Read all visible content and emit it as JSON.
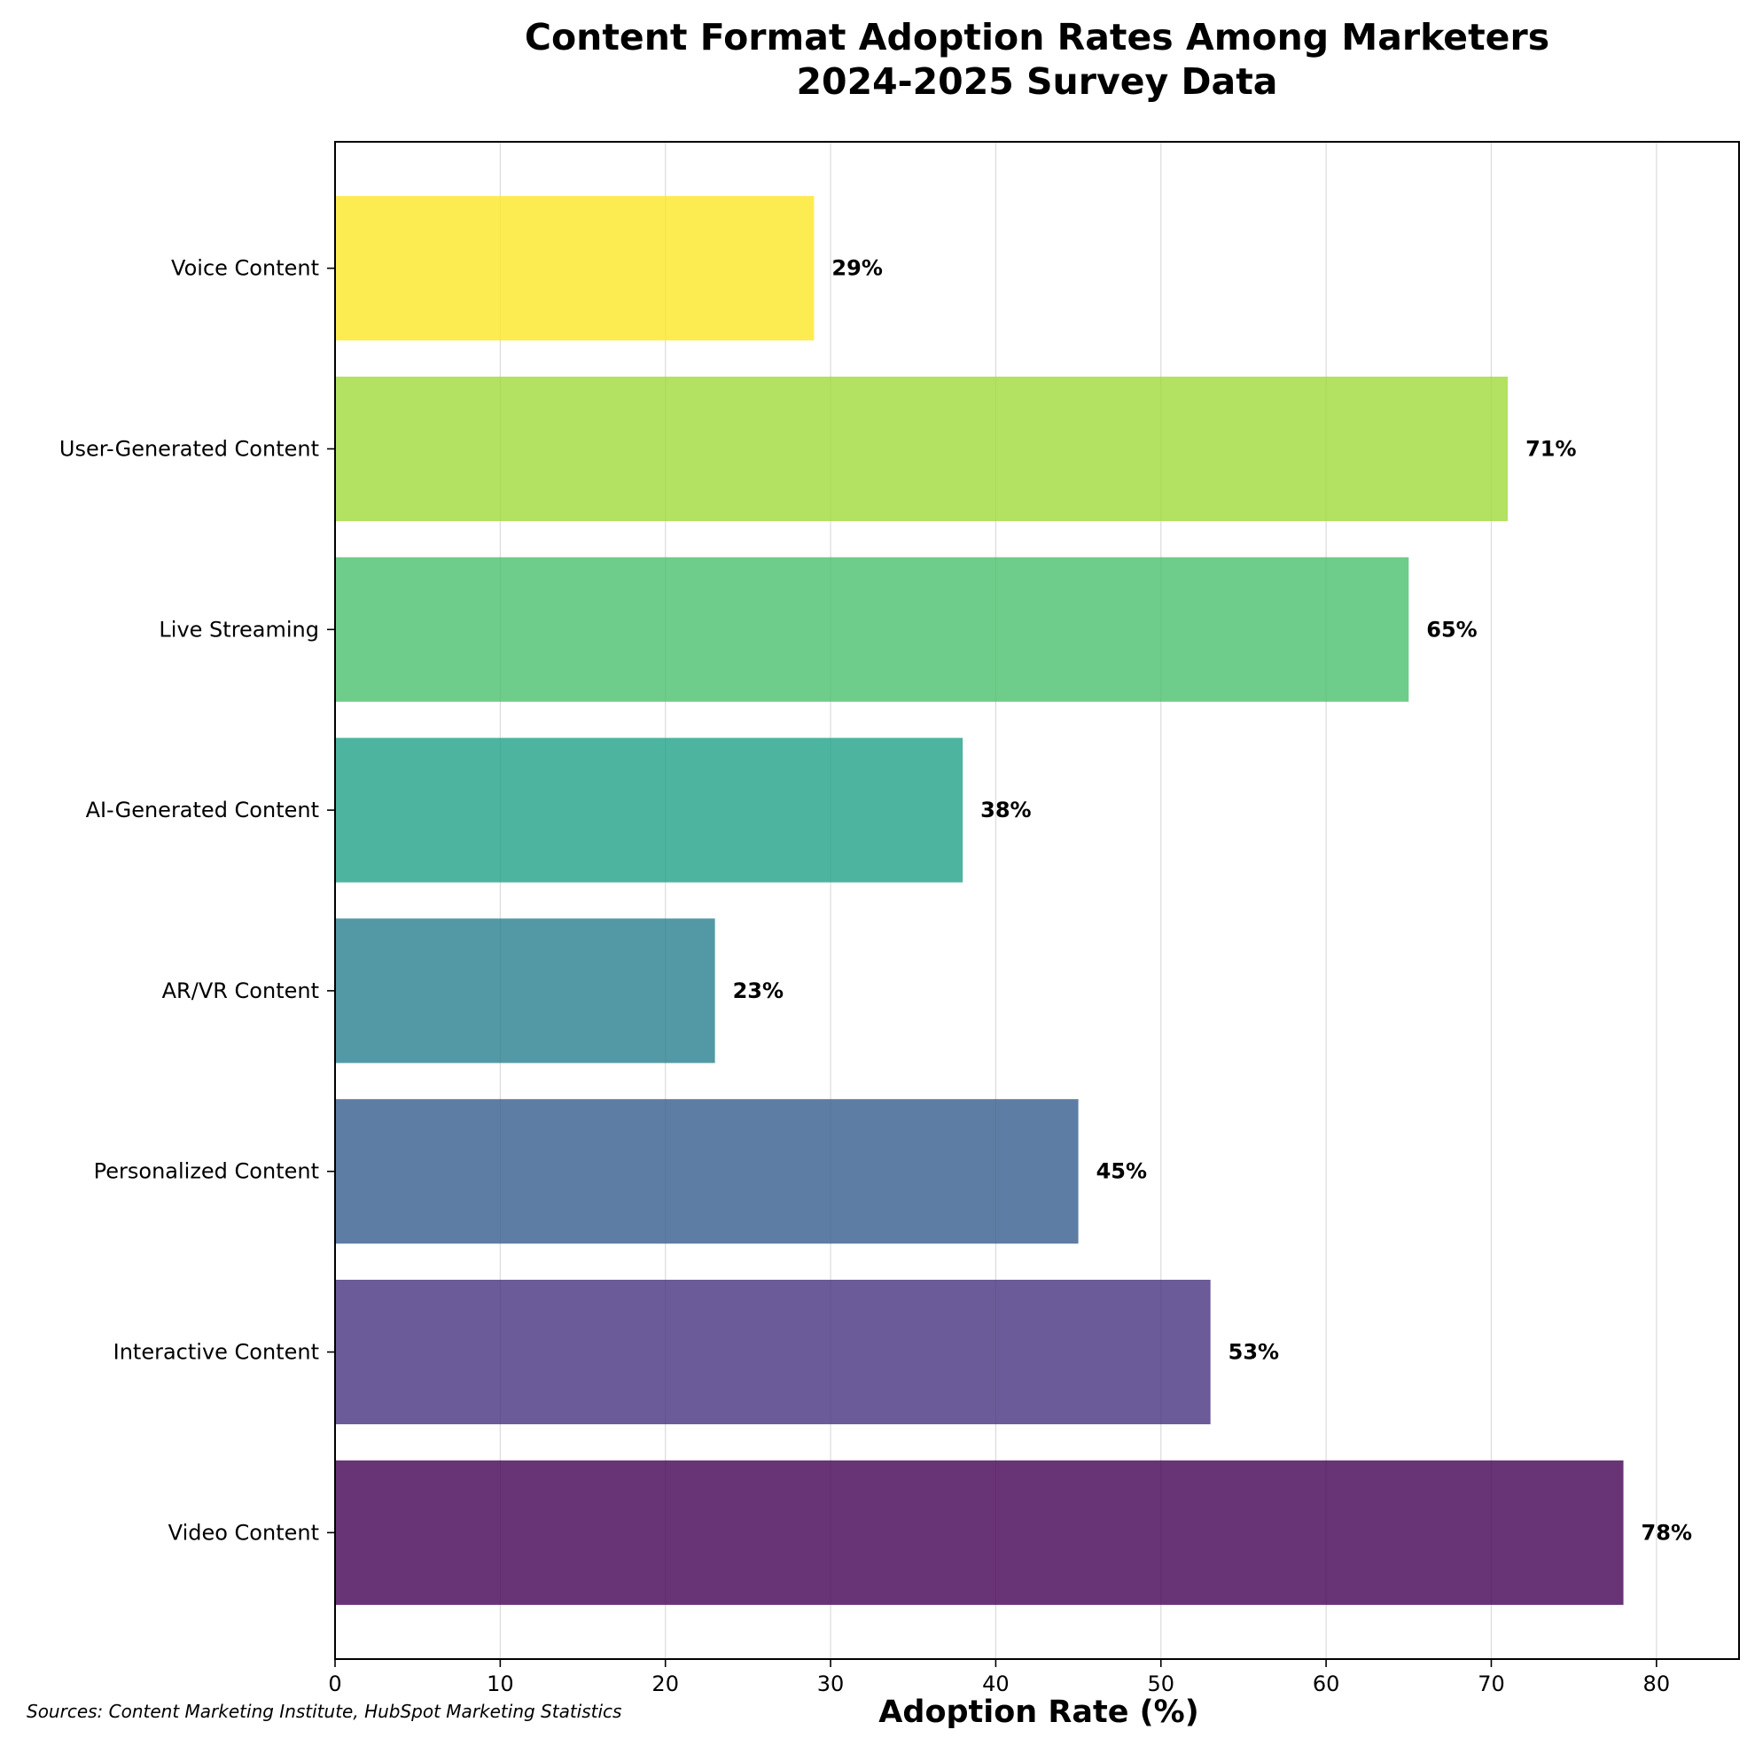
{
  "chart_data": {
    "type": "bar",
    "orientation": "horizontal",
    "title": "Content Format Adoption Rates Among Marketers",
    "subtitle": "2024-2025 Survey Data",
    "xlabel": "Adoption Rate (%)",
    "ylabel": "",
    "xlim": [
      0,
      85
    ],
    "xticks": [
      0,
      10,
      20,
      30,
      40,
      50,
      60,
      70,
      80
    ],
    "grid": "vertical",
    "categories": [
      "Video Content",
      "Interactive Content",
      "Personalized Content",
      "AR/VR Content",
      "AI-Generated Content",
      "Live Streaming",
      "User-Generated Content",
      "Voice Content"
    ],
    "values": [
      78,
      53,
      45,
      23,
      38,
      65,
      71,
      29
    ],
    "value_labels": [
      "78%",
      "53%",
      "45%",
      "23%",
      "38%",
      "65%",
      "71%",
      "29%"
    ],
    "colors": [
      "#440154",
      "#46327e",
      "#365c8d",
      "#277f8e",
      "#1fa187",
      "#4ac16d",
      "#a0da39",
      "#fde725"
    ],
    "source_note": "Sources: Content Marketing Institute, HubSpot Marketing Statistics"
  }
}
